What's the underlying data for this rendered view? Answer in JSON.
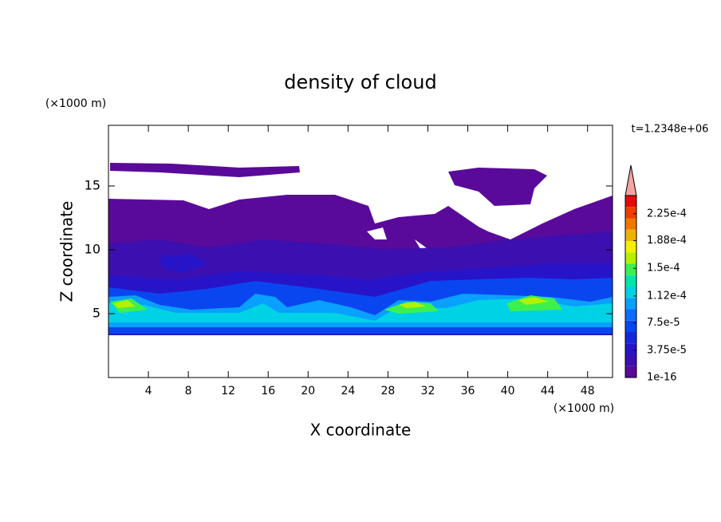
{
  "chart_data": {
    "type": "contour",
    "title": "density of cloud",
    "x_label": "X coordinate",
    "y_label": "Z coordinate",
    "x_unit": "(×1000 m)",
    "y_unit": "(×1000 m)",
    "annotation": "t=1.2348e+06",
    "xlim": [
      0,
      50.5
    ],
    "xticks": [
      4,
      8,
      12,
      16,
      20,
      24,
      28,
      32,
      36,
      40,
      44,
      48
    ],
    "ylim": [
      0,
      19.75
    ],
    "yticks": [
      5,
      10,
      15
    ],
    "colorbar": {
      "lim": [
        1e-16,
        0.00025
      ],
      "ticks": [
        1e-16,
        {
          "value": 3.75e-05,
          "label": "3.75e-5"
        },
        {
          "value": 7.5e-05,
          "label": "7.5e-5"
        },
        {
          "value": 0.000112,
          "label": "1.12e-4"
        },
        {
          "value": 0.00015,
          "label": "1.5e-4"
        },
        {
          "value": 0.000188,
          "label": "1.88e-4"
        },
        {
          "value": 0.000225,
          "label": "2.25e-4"
        }
      ],
      "colors": [
        "#5a0a9a",
        "#3c0fb0",
        "#2814c8",
        "#1428dc",
        "#0a46f0",
        "#0a6eff",
        "#0aa0ff",
        "#00d2e6",
        "#00e6aa",
        "#3cf050",
        "#b4f000",
        "#f0f000",
        "#f0b400",
        "#f07800",
        "#f03c00",
        "#e60a0a"
      ],
      "extend_color": "#f4a4a4"
    }
  }
}
